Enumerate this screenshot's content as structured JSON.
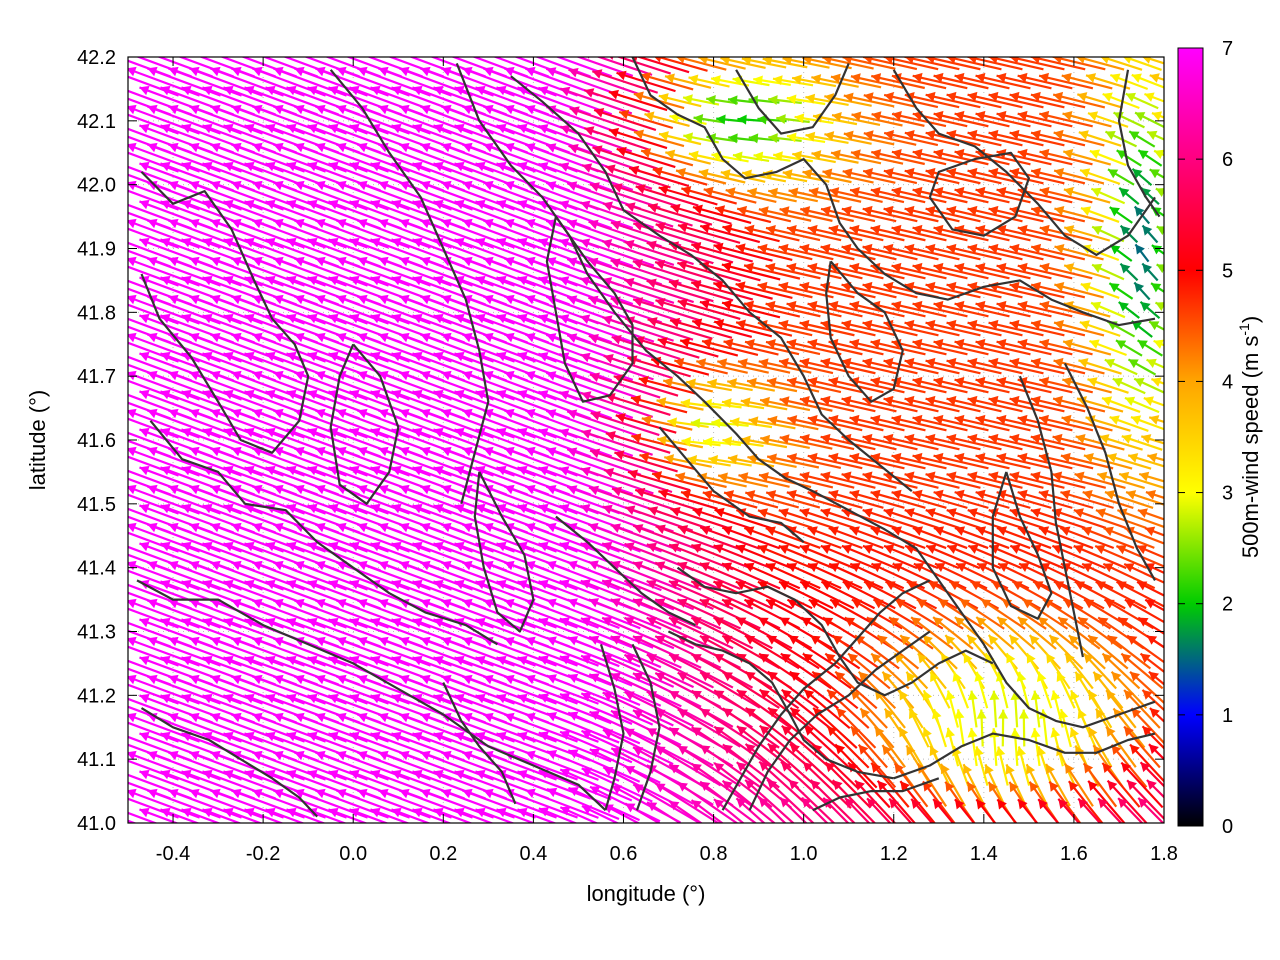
{
  "chart_data": {
    "type": "vector-field",
    "xlabel": "longitude (°)",
    "ylabel": "latitude (°)",
    "xlim": [
      -0.5,
      1.8
    ],
    "ylim": [
      41.0,
      42.2
    ],
    "x_ticks": [
      {
        "value": -0.4,
        "label": "-0.4"
      },
      {
        "value": -0.2,
        "label": "-0.2"
      },
      {
        "value": 0.0,
        "label": "0.0"
      },
      {
        "value": 0.2,
        "label": "0.2"
      },
      {
        "value": 0.4,
        "label": "0.4"
      },
      {
        "value": 0.6,
        "label": "0.6"
      },
      {
        "value": 0.8,
        "label": "0.8"
      },
      {
        "value": 1.0,
        "label": "1.0"
      },
      {
        "value": 1.2,
        "label": "1.2"
      },
      {
        "value": 1.4,
        "label": "1.4"
      },
      {
        "value": 1.6,
        "label": "1.6"
      },
      {
        "value": 1.8,
        "label": "1.8"
      }
    ],
    "y_ticks": [
      {
        "value": 41.0,
        "label": "41.0"
      },
      {
        "value": 41.1,
        "label": "41.1"
      },
      {
        "value": 41.2,
        "label": "41.2"
      },
      {
        "value": 41.3,
        "label": "41.3"
      },
      {
        "value": 41.4,
        "label": "41.4"
      },
      {
        "value": 41.5,
        "label": "41.5"
      },
      {
        "value": 41.6,
        "label": "41.6"
      },
      {
        "value": 41.7,
        "label": "41.7"
      },
      {
        "value": 41.8,
        "label": "41.8"
      },
      {
        "value": 41.9,
        "label": "41.9"
      },
      {
        "value": 42.0,
        "label": "42.0"
      },
      {
        "value": 42.1,
        "label": "42.1"
      },
      {
        "value": 42.2,
        "label": "42.2"
      }
    ],
    "grid": "dotted",
    "colorbar": {
      "label_main": "500m-wind speed (m s",
      "label_sup": "-1",
      "label_end": ")",
      "range": [
        0,
        7
      ],
      "ticks": [
        {
          "value": 0,
          "label": "0"
        },
        {
          "value": 1,
          "label": "1"
        },
        {
          "value": 2,
          "label": "2"
        },
        {
          "value": 3,
          "label": "3"
        },
        {
          "value": 4,
          "label": "4"
        },
        {
          "value": 5,
          "label": "5"
        },
        {
          "value": 6,
          "label": "6"
        },
        {
          "value": 7,
          "label": "7"
        }
      ],
      "colors": [
        "#000000",
        "#0000ff",
        "#00cc00",
        "#ffff00",
        "#ffa500",
        "#ff0000",
        "#ff00ff"
      ]
    },
    "contour_color": "#333333",
    "contours": [
      [
        [
          -0.47,
          42.02
        ],
        [
          -0.4,
          41.97
        ],
        [
          -0.33,
          41.99
        ],
        [
          -0.27,
          41.93
        ],
        [
          -0.22,
          41.85
        ],
        [
          -0.18,
          41.79
        ],
        [
          -0.13,
          41.75
        ],
        [
          -0.1,
          41.7
        ],
        [
          -0.12,
          41.63
        ],
        [
          -0.18,
          41.58
        ],
        [
          -0.25,
          41.6
        ],
        [
          -0.3,
          41.66
        ],
        [
          -0.36,
          41.73
        ],
        [
          -0.43,
          41.79
        ],
        [
          -0.47,
          41.86
        ]
      ],
      [
        [
          -0.45,
          41.63
        ],
        [
          -0.38,
          41.57
        ],
        [
          -0.3,
          41.55
        ],
        [
          -0.24,
          41.5
        ],
        [
          -0.15,
          41.49
        ],
        [
          -0.08,
          41.44
        ],
        [
          0.0,
          41.4
        ],
        [
          0.08,
          41.36
        ],
        [
          0.16,
          41.33
        ],
        [
          0.25,
          41.31
        ],
        [
          0.32,
          41.28
        ]
      ],
      [
        [
          -0.48,
          41.38
        ],
        [
          -0.4,
          41.35
        ],
        [
          -0.3,
          41.35
        ],
        [
          -0.2,
          41.31
        ],
        [
          -0.1,
          41.28
        ],
        [
          0.0,
          41.25
        ],
        [
          0.1,
          41.21
        ],
        [
          0.2,
          41.17
        ],
        [
          0.3,
          41.12
        ],
        [
          0.4,
          41.09
        ],
        [
          0.5,
          41.06
        ],
        [
          0.56,
          41.02
        ]
      ],
      [
        [
          -0.05,
          42.18
        ],
        [
          0.02,
          42.12
        ],
        [
          0.08,
          42.05
        ],
        [
          0.15,
          41.98
        ],
        [
          0.2,
          41.9
        ],
        [
          0.25,
          41.82
        ],
        [
          0.28,
          41.74
        ],
        [
          0.3,
          41.66
        ],
        [
          0.27,
          41.58
        ],
        [
          0.24,
          41.5
        ]
      ],
      [
        [
          0.0,
          41.75
        ],
        [
          0.06,
          41.7
        ],
        [
          0.1,
          41.62
        ],
        [
          0.08,
          41.55
        ],
        [
          0.03,
          41.5
        ],
        [
          -0.03,
          41.53
        ],
        [
          -0.05,
          41.62
        ],
        [
          -0.03,
          41.7
        ],
        [
          0.0,
          41.75
        ]
      ],
      [
        [
          0.23,
          42.19
        ],
        [
          0.28,
          42.1
        ],
        [
          0.35,
          42.03
        ],
        [
          0.42,
          41.98
        ],
        [
          0.48,
          41.92
        ],
        [
          0.52,
          41.86
        ],
        [
          0.58,
          41.8
        ],
        [
          0.65,
          41.74
        ],
        [
          0.72,
          41.7
        ],
        [
          0.78,
          41.66
        ],
        [
          0.85,
          41.61
        ],
        [
          0.9,
          41.57
        ],
        [
          0.96,
          41.54
        ],
        [
          1.02,
          41.52
        ],
        [
          1.1,
          41.49
        ],
        [
          1.18,
          41.46
        ],
        [
          1.25,
          41.43
        ],
        [
          1.3,
          41.38
        ],
        [
          1.35,
          41.33
        ],
        [
          1.4,
          41.28
        ],
        [
          1.45,
          41.22
        ],
        [
          1.5,
          41.18
        ],
        [
          1.56,
          41.16
        ],
        [
          1.62,
          41.15
        ],
        [
          1.7,
          41.17
        ],
        [
          1.78,
          41.19
        ]
      ],
      [
        [
          0.35,
          42.17
        ],
        [
          0.42,
          42.13
        ],
        [
          0.5,
          42.08
        ],
        [
          0.56,
          42.02
        ],
        [
          0.6,
          41.96
        ],
        [
          0.68,
          41.92
        ],
        [
          0.75,
          41.89
        ],
        [
          0.82,
          41.85
        ],
        [
          0.88,
          41.8
        ],
        [
          0.95,
          41.76
        ],
        [
          1.0,
          41.7
        ],
        [
          1.04,
          41.64
        ],
        [
          1.1,
          41.6
        ],
        [
          1.17,
          41.56
        ],
        [
          1.24,
          41.52
        ]
      ],
      [
        [
          0.45,
          41.95
        ],
        [
          0.52,
          41.88
        ],
        [
          0.58,
          41.83
        ],
        [
          0.62,
          41.78
        ],
        [
          0.62,
          41.72
        ],
        [
          0.57,
          41.67
        ],
        [
          0.51,
          41.66
        ],
        [
          0.47,
          41.72
        ],
        [
          0.45,
          41.8
        ],
        [
          0.43,
          41.88
        ],
        [
          0.45,
          41.95
        ]
      ],
      [
        [
          0.62,
          42.2
        ],
        [
          0.66,
          42.14
        ],
        [
          0.72,
          42.11
        ],
        [
          0.78,
          42.09
        ],
        [
          0.82,
          42.04
        ],
        [
          0.87,
          42.01
        ],
        [
          0.94,
          42.02
        ],
        [
          1.0,
          42.04
        ],
        [
          1.05,
          42.0
        ],
        [
          1.08,
          41.94
        ],
        [
          1.12,
          41.9
        ],
        [
          1.18,
          41.86
        ],
        [
          1.25,
          41.83
        ],
        [
          1.32,
          41.82
        ],
        [
          1.4,
          41.84
        ],
        [
          1.48,
          41.85
        ],
        [
          1.55,
          41.82
        ],
        [
          1.62,
          41.8
        ],
        [
          1.7,
          41.78
        ],
        [
          1.78,
          41.79
        ]
      ],
      [
        [
          0.85,
          42.18
        ],
        [
          0.9,
          42.12
        ],
        [
          0.95,
          42.08
        ],
        [
          1.02,
          42.09
        ],
        [
          1.07,
          42.14
        ],
        [
          1.1,
          42.19
        ]
      ],
      [
        [
          1.2,
          42.18
        ],
        [
          1.25,
          42.12
        ],
        [
          1.3,
          42.08
        ],
        [
          1.38,
          42.06
        ],
        [
          1.45,
          42.02
        ],
        [
          1.52,
          41.97
        ],
        [
          1.58,
          41.92
        ],
        [
          1.65,
          41.89
        ],
        [
          1.72,
          41.92
        ],
        [
          1.78,
          41.98
        ]
      ],
      [
        [
          1.28,
          41.98
        ],
        [
          1.33,
          41.93
        ],
        [
          1.4,
          41.92
        ],
        [
          1.47,
          41.95
        ],
        [
          1.5,
          42.01
        ],
        [
          1.46,
          42.05
        ],
        [
          1.38,
          42.04
        ],
        [
          1.3,
          42.02
        ],
        [
          1.28,
          41.98
        ]
      ],
      [
        [
          0.72,
          41.4
        ],
        [
          0.78,
          41.37
        ],
        [
          0.85,
          41.36
        ],
        [
          0.92,
          41.37
        ],
        [
          0.98,
          41.35
        ],
        [
          1.04,
          41.31
        ],
        [
          1.08,
          41.26
        ],
        [
          1.12,
          41.22
        ],
        [
          1.18,
          41.2
        ],
        [
          1.24,
          41.22
        ],
        [
          1.3,
          41.25
        ],
        [
          1.36,
          41.27
        ],
        [
          1.42,
          41.25
        ]
      ],
      [
        [
          0.7,
          41.3
        ],
        [
          0.76,
          41.28
        ],
        [
          0.82,
          41.27
        ],
        [
          0.88,
          41.25
        ],
        [
          0.93,
          41.22
        ],
        [
          0.97,
          41.17
        ],
        [
          1.0,
          41.13
        ],
        [
          1.05,
          41.1
        ],
        [
          1.12,
          41.08
        ],
        [
          1.2,
          41.07
        ]
      ],
      [
        [
          0.82,
          41.02
        ],
        [
          0.86,
          41.07
        ],
        [
          0.9,
          41.12
        ],
        [
          0.95,
          41.17
        ],
        [
          1.0,
          41.21
        ],
        [
          1.07,
          41.25
        ],
        [
          1.12,
          41.29
        ],
        [
          1.17,
          41.33
        ],
        [
          1.22,
          41.36
        ],
        [
          1.28,
          41.38
        ]
      ],
      [
        [
          0.88,
          41.02
        ],
        [
          0.92,
          41.08
        ],
        [
          0.97,
          41.13
        ],
        [
          1.03,
          41.17
        ],
        [
          1.1,
          41.2
        ],
        [
          1.16,
          41.24
        ],
        [
          1.22,
          41.27
        ],
        [
          1.28,
          41.3
        ]
      ],
      [
        [
          0.62,
          41.28
        ],
        [
          0.66,
          41.22
        ],
        [
          0.68,
          41.15
        ],
        [
          0.66,
          41.08
        ],
        [
          0.63,
          41.02
        ]
      ],
      [
        [
          0.55,
          41.28
        ],
        [
          0.58,
          41.21
        ],
        [
          0.6,
          41.14
        ],
        [
          0.58,
          41.07
        ],
        [
          0.56,
          41.02
        ]
      ],
      [
        [
          0.2,
          41.22
        ],
        [
          0.24,
          41.16
        ],
        [
          0.28,
          41.12
        ],
        [
          0.33,
          41.08
        ],
        [
          0.36,
          41.03
        ]
      ],
      [
        [
          0.45,
          41.48
        ],
        [
          0.52,
          41.44
        ],
        [
          0.58,
          41.4
        ],
        [
          0.64,
          41.36
        ],
        [
          0.7,
          41.33
        ],
        [
          0.76,
          41.31
        ]
      ],
      [
        [
          1.2,
          41.07
        ],
        [
          1.28,
          41.09
        ],
        [
          1.35,
          41.12
        ],
        [
          1.42,
          41.14
        ],
        [
          1.5,
          41.13
        ],
        [
          1.58,
          41.11
        ],
        [
          1.65,
          41.11
        ],
        [
          1.72,
          41.13
        ],
        [
          1.78,
          41.14
        ]
      ],
      [
        [
          1.02,
          41.02
        ],
        [
          1.08,
          41.04
        ],
        [
          1.15,
          41.05
        ],
        [
          1.22,
          41.05
        ],
        [
          1.3,
          41.07
        ]
      ],
      [
        [
          1.58,
          41.72
        ],
        [
          1.63,
          41.65
        ],
        [
          1.67,
          41.58
        ],
        [
          1.7,
          41.5
        ],
        [
          1.74,
          41.43
        ],
        [
          1.78,
          41.38
        ]
      ],
      [
        [
          1.48,
          41.7
        ],
        [
          1.52,
          41.63
        ],
        [
          1.55,
          41.55
        ],
        [
          1.56,
          41.47
        ],
        [
          1.58,
          41.4
        ],
        [
          1.6,
          41.33
        ],
        [
          1.62,
          41.26
        ]
      ],
      [
        [
          1.72,
          42.18
        ],
        [
          1.7,
          42.1
        ],
        [
          1.72,
          42.03
        ],
        [
          1.76,
          41.98
        ],
        [
          1.79,
          41.95
        ]
      ],
      [
        [
          1.06,
          41.88
        ],
        [
          1.12,
          41.83
        ],
        [
          1.18,
          41.8
        ],
        [
          1.22,
          41.74
        ],
        [
          1.2,
          41.68
        ],
        [
          1.15,
          41.66
        ],
        [
          1.1,
          41.7
        ],
        [
          1.06,
          41.76
        ],
        [
          1.05,
          41.83
        ],
        [
          1.06,
          41.88
        ]
      ],
      [
        [
          0.68,
          41.62
        ],
        [
          0.74,
          41.57
        ],
        [
          0.8,
          41.52
        ],
        [
          0.88,
          41.48
        ],
        [
          0.95,
          41.47
        ],
        [
          1.0,
          41.44
        ]
      ],
      [
        [
          1.45,
          41.55
        ],
        [
          1.48,
          41.48
        ],
        [
          1.52,
          41.42
        ],
        [
          1.55,
          41.36
        ],
        [
          1.52,
          41.32
        ],
        [
          1.46,
          41.34
        ],
        [
          1.42,
          41.4
        ],
        [
          1.42,
          41.48
        ],
        [
          1.45,
          41.55
        ]
      ],
      [
        [
          -0.47,
          41.18
        ],
        [
          -0.4,
          41.15
        ],
        [
          -0.32,
          41.13
        ],
        [
          -0.25,
          41.1
        ],
        [
          -0.18,
          41.07
        ],
        [
          -0.12,
          41.04
        ],
        [
          -0.08,
          41.01
        ]
      ],
      [
        [
          0.28,
          41.55
        ],
        [
          0.33,
          41.48
        ],
        [
          0.38,
          41.42
        ],
        [
          0.4,
          41.35
        ],
        [
          0.37,
          41.3
        ],
        [
          0.32,
          41.33
        ],
        [
          0.29,
          41.4
        ],
        [
          0.27,
          41.48
        ],
        [
          0.28,
          41.55
        ]
      ]
    ]
  }
}
